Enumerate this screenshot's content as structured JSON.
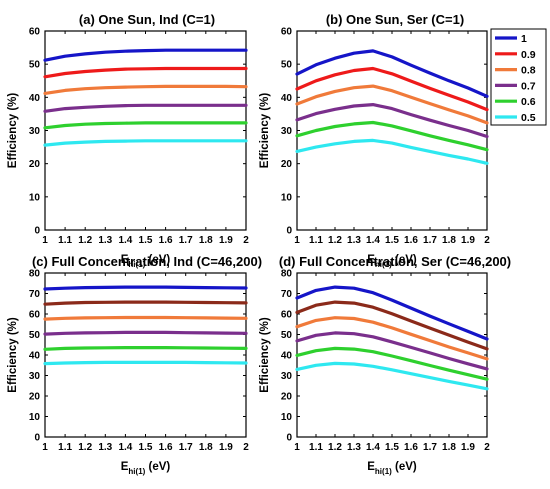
{
  "chart_data": [
    {
      "type": "line",
      "title": "(a) One Sun, Ind (C=1)",
      "xlabel": {
        "main": "E",
        "sub": "hi(1)",
        "unit": "(eV)"
      },
      "ylabel": "Efficiency (%)",
      "xlim": [
        1,
        2
      ],
      "ylim": [
        0,
        60
      ],
      "xticks": [
        "1",
        "1.1",
        "1.2",
        "1.3",
        "1.4",
        "1.5",
        "1.6",
        "1.7",
        "1.8",
        "1.9",
        "2"
      ],
      "yticks": [
        "0",
        "10",
        "20",
        "30",
        "40",
        "50",
        "60"
      ],
      "x": [
        1,
        1.1,
        1.2,
        1.3,
        1.4,
        1.5,
        1.6,
        1.7,
        1.8,
        1.9,
        2
      ],
      "series": [
        {
          "name": "1",
          "color": "#1515c8",
          "values": [
            51.2,
            52.4,
            53.1,
            53.6,
            53.9,
            54.1,
            54.2,
            54.2,
            54.2,
            54.2,
            54.2
          ]
        },
        {
          "name": "0.9",
          "color": "#ee1a1a",
          "values": [
            46.2,
            47.2,
            47.8,
            48.2,
            48.5,
            48.6,
            48.7,
            48.7,
            48.7,
            48.7,
            48.7
          ]
        },
        {
          "name": "0.8",
          "color": "#f07a3a",
          "values": [
            41.2,
            42.1,
            42.6,
            42.9,
            43.1,
            43.2,
            43.3,
            43.3,
            43.3,
            43.3,
            43.2
          ]
        },
        {
          "name": "0.7",
          "color": "#7a2f8c",
          "values": [
            35.8,
            36.6,
            37.0,
            37.3,
            37.5,
            37.6,
            37.6,
            37.6,
            37.6,
            37.6,
            37.6
          ]
        },
        {
          "name": "0.6",
          "color": "#2ed02e",
          "values": [
            30.8,
            31.5,
            31.9,
            32.1,
            32.2,
            32.3,
            32.3,
            32.3,
            32.3,
            32.3,
            32.3
          ]
        },
        {
          "name": "0.5",
          "color": "#2ee8f0",
          "values": [
            25.6,
            26.2,
            26.5,
            26.7,
            26.8,
            26.9,
            26.9,
            26.9,
            26.9,
            26.9,
            26.9
          ]
        }
      ]
    },
    {
      "type": "line",
      "title": "(b) One Sun, Ser (C=1)",
      "xlabel": {
        "main": "E",
        "sub": "hi(1)",
        "unit": "(eV)"
      },
      "ylabel": "Efficiency (%)",
      "xlim": [
        1,
        2
      ],
      "ylim": [
        0,
        60
      ],
      "xticks": [
        "1",
        "1.1",
        "1.2",
        "1.3",
        "1.4",
        "1.5",
        "1.6",
        "1.7",
        "1.8",
        "1.9",
        "2"
      ],
      "yticks": [
        "0",
        "10",
        "20",
        "30",
        "40",
        "50",
        "60"
      ],
      "x": [
        1,
        1.1,
        1.2,
        1.3,
        1.4,
        1.5,
        1.6,
        1.7,
        1.8,
        1.9,
        2
      ],
      "series": [
        {
          "name": "1",
          "color": "#1515c8",
          "values": [
            47.0,
            49.8,
            51.8,
            53.3,
            54.0,
            52.2,
            49.7,
            47.3,
            45.0,
            42.8,
            40.3
          ]
        },
        {
          "name": "0.9",
          "color": "#ee1a1a",
          "values": [
            42.5,
            45.0,
            46.8,
            48.1,
            48.7,
            47.1,
            44.9,
            42.7,
            40.6,
            38.6,
            36.3
          ]
        },
        {
          "name": "0.8",
          "color": "#f07a3a",
          "values": [
            38.0,
            40.2,
            41.8,
            42.9,
            43.4,
            42.0,
            40.0,
            38.1,
            36.2,
            34.4,
            32.3
          ]
        },
        {
          "name": "0.7",
          "color": "#7a2f8c",
          "values": [
            33.2,
            35.1,
            36.4,
            37.4,
            37.8,
            36.6,
            34.8,
            33.1,
            31.5,
            30.0,
            28.2
          ]
        },
        {
          "name": "0.6",
          "color": "#2ed02e",
          "values": [
            28.4,
            30.0,
            31.2,
            32.0,
            32.4,
            31.4,
            29.9,
            28.4,
            27.0,
            25.7,
            24.2
          ]
        },
        {
          "name": "0.5",
          "color": "#2ee8f0",
          "values": [
            23.7,
            25.0,
            26.0,
            26.7,
            27.0,
            26.2,
            24.9,
            23.7,
            22.5,
            21.4,
            20.1
          ]
        }
      ]
    },
    {
      "type": "line",
      "title": "(c) Full Concentration, Ind (C=46,200)",
      "xlabel": {
        "main": "E",
        "sub": "hi(1)",
        "unit": "(eV)"
      },
      "ylabel": "Efficiency (%)",
      "xlim": [
        1,
        2
      ],
      "ylim": [
        0,
        80
      ],
      "xticks": [
        "1",
        "1.1",
        "1.2",
        "1.3",
        "1.4",
        "1.5",
        "1.6",
        "1.7",
        "1.8",
        "1.9",
        "2"
      ],
      "yticks": [
        "0",
        "10",
        "20",
        "30",
        "40",
        "50",
        "60",
        "70",
        "80"
      ],
      "x": [
        1,
        1.1,
        1.2,
        1.3,
        1.4,
        1.5,
        1.6,
        1.7,
        1.8,
        1.9,
        2
      ],
      "series": [
        {
          "name": "1",
          "color": "#1515c8",
          "values": [
            72.2,
            72.6,
            72.9,
            73.0,
            73.1,
            73.1,
            73.1,
            73.0,
            72.9,
            72.8,
            72.7
          ]
        },
        {
          "name": "0.9",
          "color": "#8b2a1a",
          "values": [
            64.8,
            65.3,
            65.6,
            65.7,
            65.8,
            65.8,
            65.8,
            65.7,
            65.6,
            65.5,
            65.4
          ]
        },
        {
          "name": "0.8",
          "color": "#f07a3a",
          "values": [
            57.5,
            57.9,
            58.1,
            58.2,
            58.3,
            58.3,
            58.3,
            58.2,
            58.1,
            58.0,
            57.9
          ]
        },
        {
          "name": "0.7",
          "color": "#7a2f8c",
          "values": [
            50.2,
            50.6,
            50.8,
            50.9,
            51.0,
            51.0,
            51.0,
            50.9,
            50.8,
            50.7,
            50.6
          ]
        },
        {
          "name": "0.6",
          "color": "#2ed02e",
          "values": [
            42.8,
            43.2,
            43.4,
            43.5,
            43.6,
            43.6,
            43.6,
            43.5,
            43.4,
            43.3,
            43.2
          ]
        },
        {
          "name": "0.5",
          "color": "#2ee8f0",
          "values": [
            35.8,
            36.1,
            36.3,
            36.4,
            36.4,
            36.4,
            36.4,
            36.4,
            36.3,
            36.2,
            36.1
          ]
        }
      ]
    },
    {
      "type": "line",
      "title": "(d) Full Concentration, Ser (C=46,200)",
      "xlabel": {
        "main": "E",
        "sub": "hi(1)",
        "unit": "(eV)"
      },
      "ylabel": "Efficiency (%)",
      "xlim": [
        1,
        2
      ],
      "ylim": [
        0,
        80
      ],
      "xticks": [
        "1",
        "1.1",
        "1.2",
        "1.3",
        "1.4",
        "1.5",
        "1.6",
        "1.7",
        "1.8",
        "1.9",
        "2"
      ],
      "yticks": [
        "0",
        "10",
        "20",
        "30",
        "40",
        "50",
        "60",
        "70",
        "80"
      ],
      "x": [
        1,
        1.1,
        1.2,
        1.3,
        1.4,
        1.5,
        1.6,
        1.7,
        1.8,
        1.9,
        2
      ],
      "series": [
        {
          "name": "1",
          "color": "#1515c8",
          "values": [
            67.8,
            71.5,
            73.1,
            72.6,
            70.4,
            66.8,
            62.9,
            59.0,
            55.2,
            51.5,
            47.8
          ]
        },
        {
          "name": "0.9",
          "color": "#8b2a1a",
          "values": [
            60.8,
            64.3,
            65.8,
            65.3,
            63.3,
            60.1,
            56.6,
            53.1,
            49.7,
            46.3,
            43.0
          ]
        },
        {
          "name": "0.8",
          "color": "#f07a3a",
          "values": [
            53.8,
            56.9,
            58.2,
            57.8,
            56.0,
            53.2,
            50.1,
            47.0,
            43.9,
            41.0,
            38.1
          ]
        },
        {
          "name": "0.7",
          "color": "#7a2f8c",
          "values": [
            46.9,
            49.6,
            50.8,
            50.4,
            48.9,
            46.4,
            43.7,
            41.0,
            38.3,
            35.7,
            33.2
          ]
        },
        {
          "name": "0.6",
          "color": "#2ed02e",
          "values": [
            39.8,
            42.1,
            43.2,
            42.9,
            41.6,
            39.5,
            37.2,
            34.9,
            32.6,
            30.4,
            28.2
          ]
        },
        {
          "name": "0.5",
          "color": "#2ee8f0",
          "values": [
            33.0,
            35.0,
            35.9,
            35.6,
            34.5,
            32.8,
            30.9,
            29.0,
            27.1,
            25.3,
            23.5
          ]
        }
      ]
    }
  ],
  "legend": {
    "placement": "right of panel (b)",
    "entries": [
      {
        "label": "1",
        "color": "#1515c8"
      },
      {
        "label": "0.9",
        "color": "#ee1a1a"
      },
      {
        "label": "0.8",
        "color": "#f07a3a"
      },
      {
        "label": "0.7",
        "color": "#7a2f8c"
      },
      {
        "label": "0.6",
        "color": "#2ed02e"
      },
      {
        "label": "0.5",
        "color": "#2ee8f0"
      }
    ]
  }
}
